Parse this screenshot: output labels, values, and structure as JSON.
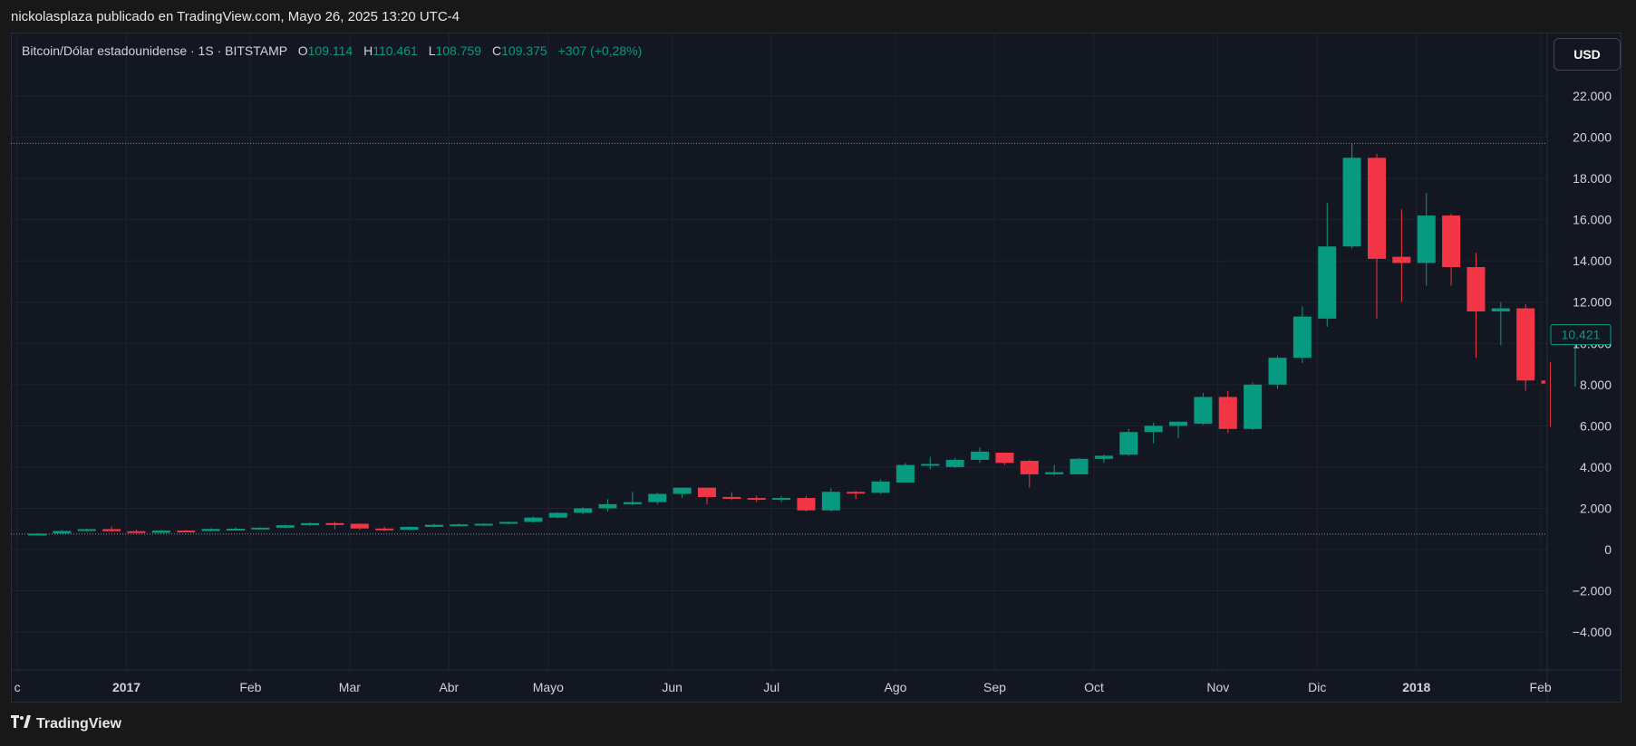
{
  "header": {
    "publish_line": "nickolasplaza publicado en TradingView.com, Mayo 26, 2025 13:20 UTC-4"
  },
  "legend": {
    "symbol": "Bitcoin/Dólar estadounidense · 1S · BITSTAMP",
    "open_label": "O",
    "open": "109.114",
    "high_label": "H",
    "high": "110.461",
    "low_label": "L",
    "low": "108.759",
    "close_label": "C",
    "close": "109.375",
    "change": "+307 (+0,28%)"
  },
  "toolbar": {
    "currency": "USD"
  },
  "footer": {
    "brand": "TradingView",
    "logo_icon": "tradingview-logo-icon"
  },
  "colors": {
    "up": "#089981",
    "down": "#f23645",
    "background": "#131722",
    "grid": "#1f2330",
    "axis_text": "#d1d4dc"
  },
  "chart_data": {
    "type": "candlestick",
    "title": "",
    "ylim": [
      -6000,
      23000
    ],
    "yticks": [
      22000,
      20000,
      18000,
      16000,
      14000,
      12000,
      10000,
      8000,
      6000,
      4000,
      2000,
      0,
      -2000,
      -4000
    ],
    "ytick_labels": [
      "22.000",
      "20.000",
      "18.000",
      "16.000",
      "14.000",
      "12.000",
      "10.000",
      "8.000",
      "6.000",
      "4.000",
      "2.000",
      "0",
      "−2.000",
      "−4.000"
    ],
    "x_labels": [
      {
        "label": "c",
        "week": -0.8,
        "bold": false
      },
      {
        "label": "2017",
        "week": 3.6,
        "bold": true
      },
      {
        "label": "Feb",
        "week": 8.6,
        "bold": false
      },
      {
        "label": "Mar",
        "week": 12.6,
        "bold": false
      },
      {
        "label": "Abr",
        "week": 16.6,
        "bold": false
      },
      {
        "label": "Mayo",
        "week": 20.6,
        "bold": false
      },
      {
        "label": "Jun",
        "week": 25.6,
        "bold": false
      },
      {
        "label": "Jul",
        "week": 29.6,
        "bold": false
      },
      {
        "label": "Ago",
        "week": 34.6,
        "bold": false
      },
      {
        "label": "Sep",
        "week": 38.6,
        "bold": false
      },
      {
        "label": "Oct",
        "week": 42.6,
        "bold": false
      },
      {
        "label": "Nov",
        "week": 47.6,
        "bold": false
      },
      {
        "label": "Dic",
        "week": 51.6,
        "bold": false
      },
      {
        "label": "2018",
        "week": 55.6,
        "bold": true
      },
      {
        "label": "Feb",
        "week": 60.6,
        "bold": false
      }
    ],
    "candles": [
      {
        "o": 750,
        "h": 790,
        "l": 720,
        "c": 770
      },
      {
        "o": 780,
        "h": 950,
        "l": 760,
        "c": 900
      },
      {
        "o": 900,
        "h": 1020,
        "l": 860,
        "c": 990
      },
      {
        "o": 990,
        "h": 1120,
        "l": 850,
        "c": 890
      },
      {
        "o": 890,
        "h": 960,
        "l": 760,
        "c": 810
      },
      {
        "o": 810,
        "h": 940,
        "l": 790,
        "c": 920
      },
      {
        "o": 920,
        "h": 950,
        "l": 880,
        "c": 900
      },
      {
        "o": 900,
        "h": 1030,
        "l": 880,
        "c": 1000
      },
      {
        "o": 1000,
        "h": 1090,
        "l": 960,
        "c": 1010
      },
      {
        "o": 1010,
        "h": 1080,
        "l": 990,
        "c": 1060
      },
      {
        "o": 1060,
        "h": 1200,
        "l": 1040,
        "c": 1180
      },
      {
        "o": 1180,
        "h": 1310,
        "l": 1150,
        "c": 1280
      },
      {
        "o": 1280,
        "h": 1350,
        "l": 980,
        "c": 1250
      },
      {
        "o": 1250,
        "h": 1270,
        "l": 950,
        "c": 1020
      },
      {
        "o": 1020,
        "h": 1100,
        "l": 900,
        "c": 960
      },
      {
        "o": 960,
        "h": 1120,
        "l": 940,
        "c": 1100
      },
      {
        "o": 1100,
        "h": 1250,
        "l": 1080,
        "c": 1200
      },
      {
        "o": 1200,
        "h": 1260,
        "l": 1150,
        "c": 1220
      },
      {
        "o": 1220,
        "h": 1280,
        "l": 1180,
        "c": 1250
      },
      {
        "o": 1250,
        "h": 1350,
        "l": 1220,
        "c": 1340
      },
      {
        "o": 1340,
        "h": 1600,
        "l": 1320,
        "c": 1550
      },
      {
        "o": 1550,
        "h": 1800,
        "l": 1520,
        "c": 1780
      },
      {
        "o": 1780,
        "h": 2050,
        "l": 1700,
        "c": 2000
      },
      {
        "o": 2000,
        "h": 2450,
        "l": 1860,
        "c": 2200
      },
      {
        "o": 2200,
        "h": 2800,
        "l": 2150,
        "c": 2300
      },
      {
        "o": 2300,
        "h": 2750,
        "l": 2200,
        "c": 2700
      },
      {
        "o": 2700,
        "h": 2980,
        "l": 2500,
        "c": 3000
      },
      {
        "o": 3000,
        "h": 3000,
        "l": 2200,
        "c": 2550
      },
      {
        "o": 2550,
        "h": 2780,
        "l": 2400,
        "c": 2500
      },
      {
        "o": 2500,
        "h": 2620,
        "l": 2300,
        "c": 2450
      },
      {
        "o": 2450,
        "h": 2600,
        "l": 2300,
        "c": 2500
      },
      {
        "o": 2500,
        "h": 2600,
        "l": 1850,
        "c": 1900
      },
      {
        "o": 1900,
        "h": 2980,
        "l": 1850,
        "c": 2800
      },
      {
        "o": 2800,
        "h": 2850,
        "l": 2450,
        "c": 2750
      },
      {
        "o": 2750,
        "h": 3400,
        "l": 2700,
        "c": 3300
      },
      {
        "o": 3250,
        "h": 4200,
        "l": 3250,
        "c": 4100
      },
      {
        "o": 4100,
        "h": 4500,
        "l": 3900,
        "c": 4150
      },
      {
        "o": 4000,
        "h": 4450,
        "l": 3950,
        "c": 4350
      },
      {
        "o": 4350,
        "h": 4950,
        "l": 4200,
        "c": 4750
      },
      {
        "o": 4700,
        "h": 4700,
        "l": 4100,
        "c": 4200
      },
      {
        "o": 4300,
        "h": 4350,
        "l": 3000,
        "c": 3650
      },
      {
        "o": 3650,
        "h": 4100,
        "l": 3600,
        "c": 3750
      },
      {
        "o": 3650,
        "h": 4450,
        "l": 3650,
        "c": 4400
      },
      {
        "o": 4400,
        "h": 4600,
        "l": 4200,
        "c": 4550
      },
      {
        "o": 4600,
        "h": 5850,
        "l": 4550,
        "c": 5700
      },
      {
        "o": 5700,
        "h": 6150,
        "l": 5150,
        "c": 6000
      },
      {
        "o": 6000,
        "h": 6200,
        "l": 5400,
        "c": 6200
      },
      {
        "o": 6100,
        "h": 7600,
        "l": 6050,
        "c": 7400
      },
      {
        "o": 7400,
        "h": 7700,
        "l": 5650,
        "c": 5850
      },
      {
        "o": 5850,
        "h": 8100,
        "l": 5800,
        "c": 8000
      },
      {
        "o": 8000,
        "h": 9400,
        "l": 7800,
        "c": 9300
      },
      {
        "o": 9300,
        "h": 11800,
        "l": 9050,
        "c": 11300
      },
      {
        "o": 11200,
        "h": 16800,
        "l": 10800,
        "c": 14700
      },
      {
        "o": 14700,
        "h": 19700,
        "l": 14600,
        "c": 19000
      },
      {
        "o": 19000,
        "h": 19200,
        "l": 11200,
        "c": 14100
      },
      {
        "o": 14200,
        "h": 16500,
        "l": 12000,
        "c": 13900
      },
      {
        "o": 13900,
        "h": 17300,
        "l": 12800,
        "c": 16200
      },
      {
        "o": 16200,
        "h": 16300,
        "l": 12800,
        "c": 13700
      },
      {
        "o": 13700,
        "h": 14400,
        "l": 9300,
        "c": 11550
      },
      {
        "o": 11550,
        "h": 12000,
        "l": 9900,
        "c": 11700
      },
      {
        "o": 11700,
        "h": 11900,
        "l": 7700,
        "c": 8200
      },
      {
        "o": 8200,
        "h": 9100,
        "l": 5950,
        "c": 8050
      },
      {
        "o": 8050,
        "h": 10600,
        "l": 7900,
        "c": 10421
      }
    ],
    "price_lines": [
      19700,
      750
    ],
    "last_price_label": "10.421",
    "last_price": 10421
  }
}
